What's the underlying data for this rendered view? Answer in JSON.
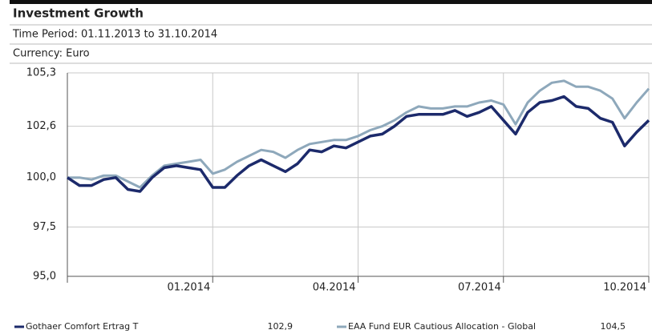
{
  "chart_data": {
    "type": "line",
    "title": "Investment Growth",
    "subtitle": "Time Period: 01.11.2013 to 31.10.2014",
    "currency": "Currency: Euro",
    "x": [
      0,
      0.25,
      0.5,
      0.75,
      1,
      1.25,
      1.5,
      1.75,
      2,
      2.25,
      2.5,
      2.75,
      3,
      3.25,
      3.5,
      3.75,
      4,
      4.25,
      4.5,
      4.75,
      5,
      5.25,
      5.5,
      5.75,
      6,
      6.25,
      6.5,
      6.75,
      7,
      7.25,
      7.5,
      7.75,
      8,
      8.25,
      8.5,
      8.75,
      9,
      9.25,
      9.5,
      9.75,
      10,
      10.25,
      10.5,
      10.75,
      11,
      11.25,
      11.5,
      11.75,
      12
    ],
    "xlim": [
      0,
      12
    ],
    "xticks": [
      {
        "value": 3,
        "label": "01.2014"
      },
      {
        "value": 6,
        "label": "04.2014"
      },
      {
        "value": 9,
        "label": "07.2014"
      },
      {
        "value": 12,
        "label": "10.2014"
      }
    ],
    "ylim": [
      95,
      105.3
    ],
    "yticks": [
      {
        "value": 95,
        "label": "95,0"
      },
      {
        "value": 97.5,
        "label": "97,5"
      },
      {
        "value": 100,
        "label": "100,0"
      },
      {
        "value": 102.6,
        "label": "102,6"
      },
      {
        "value": 105.3,
        "label": "105,3"
      }
    ],
    "grid": true,
    "series": [
      {
        "name": "Gothaer Comfort Ertrag T",
        "end_value": "102,9",
        "color": "#1c2a6b",
        "values": [
          100.0,
          99.6,
          99.6,
          99.9,
          100.0,
          99.4,
          99.3,
          100.0,
          100.5,
          100.6,
          100.5,
          100.4,
          99.5,
          99.5,
          100.1,
          100.6,
          100.9,
          100.6,
          100.3,
          100.7,
          101.4,
          101.3,
          101.6,
          101.5,
          101.8,
          102.1,
          102.2,
          102.6,
          103.1,
          103.2,
          103.2,
          103.2,
          103.4,
          103.1,
          103.3,
          103.6,
          102.9,
          102.2,
          103.3,
          103.8,
          103.9,
          104.1,
          103.6,
          103.5,
          103.0,
          102.8,
          101.6,
          102.3,
          102.9
        ]
      },
      {
        "name": "EAA Fund EUR Cautious Allocation - Global",
        "end_value": "104,5",
        "color": "#8ea8bb",
        "values": [
          100.0,
          100.0,
          99.9,
          100.1,
          100.1,
          99.8,
          99.5,
          100.1,
          100.6,
          100.7,
          100.8,
          100.9,
          100.2,
          100.4,
          100.8,
          101.1,
          101.4,
          101.3,
          101.0,
          101.4,
          101.7,
          101.8,
          101.9,
          101.9,
          102.1,
          102.4,
          102.6,
          102.9,
          103.3,
          103.6,
          103.5,
          103.5,
          103.6,
          103.6,
          103.8,
          103.9,
          103.7,
          102.7,
          103.8,
          104.4,
          104.8,
          104.9,
          104.6,
          104.6,
          104.4,
          104.0,
          103.0,
          103.8,
          104.5
        ]
      }
    ]
  }
}
